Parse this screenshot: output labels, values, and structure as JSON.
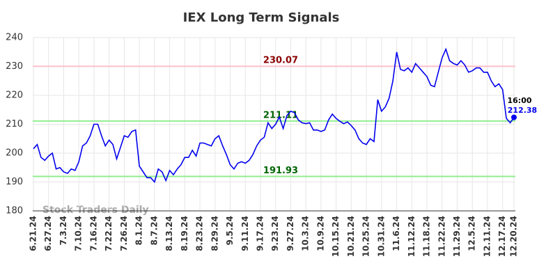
{
  "chart_data": {
    "type": "line",
    "title": "IEX Long Term Signals",
    "categories": [
      "6.21.24",
      null,
      null,
      null,
      "6.27.24",
      null,
      null,
      null,
      "7.3.24",
      null,
      null,
      null,
      "7.10.24",
      null,
      null,
      null,
      "7.16.24",
      null,
      null,
      null,
      "7.22.24",
      null,
      null,
      null,
      "7.26.24",
      null,
      null,
      null,
      "8.1.24",
      null,
      null,
      null,
      "8.7.24",
      null,
      null,
      null,
      "8.13.24",
      null,
      null,
      null,
      "8.19.24",
      null,
      null,
      null,
      "8.23.24",
      null,
      null,
      null,
      "8.29.24",
      null,
      null,
      null,
      "9.5.24",
      null,
      null,
      null,
      "9.11.24",
      null,
      null,
      null,
      "9.17.24",
      null,
      null,
      null,
      "9.23.24",
      null,
      null,
      null,
      "9.27.24",
      null,
      null,
      null,
      "10.3.24",
      null,
      null,
      null,
      "10.9.24",
      null,
      null,
      null,
      "10.15.24",
      null,
      null,
      null,
      "10.21.24",
      null,
      null,
      null,
      "10.25.24",
      null,
      null,
      null,
      "10.31.24",
      null,
      null,
      null,
      "11.6.24",
      null,
      null,
      null,
      "11.12.24",
      null,
      null,
      null,
      "11.18.24",
      null,
      null,
      null,
      "11.22.24",
      null,
      null,
      null,
      "11.29.24",
      null,
      null,
      null,
      "12.5.24",
      null,
      null,
      null,
      "12.11.24",
      null,
      null,
      null,
      "12.17.24",
      null,
      null,
      "12.20.24"
    ],
    "series": [
      {
        "color": "#0000ee",
        "values": [
          201.5,
          203,
          198.5,
          197.5,
          199,
          200,
          194.5,
          195,
          193.5,
          193,
          194.5,
          194,
          197,
          202.5,
          203.5,
          206,
          210,
          210,
          206,
          202.5,
          204.5,
          203,
          198,
          202,
          206,
          205.5,
          207.5,
          208,
          195.5,
          193.5,
          191.5,
          191.5,
          190,
          194.5,
          193.5,
          190.5,
          194,
          192.5,
          194.5,
          196,
          198.5,
          198.5,
          201,
          199,
          203.5,
          203.5,
          203,
          202.5,
          205,
          206,
          202.5,
          199.5,
          196,
          194.5,
          196.5,
          197,
          196.5,
          197.5,
          199.5,
          202.5,
          204.5,
          205.5,
          210.5,
          208.5,
          210,
          212.5,
          208.5,
          213,
          214.5,
          214,
          211.5,
          210.5,
          210.2,
          210.5,
          208,
          208,
          207.5,
          208,
          211.5,
          213.5,
          212,
          211,
          210.2,
          210.8,
          209.5,
          208,
          205,
          203.5,
          203,
          205,
          204,
          218.5,
          214.5,
          216,
          219,
          225,
          235,
          229,
          228.5,
          229.5,
          228,
          231,
          229.5,
          228,
          226.5,
          223.5,
          223,
          228,
          233,
          236,
          232,
          231,
          230.5,
          232,
          230.5,
          228,
          228.5,
          229.5,
          229.5,
          228,
          228,
          225,
          223,
          224,
          222,
          212,
          210.5,
          212.38
        ]
      }
    ],
    "last_time_label": "16:00",
    "hlines": [
      {
        "value": 230.07,
        "color": "#ffc0cb",
        "label_color": "#8b0000"
      },
      {
        "value": 211.11,
        "color": "#90ee90",
        "label_color": "#006400"
      },
      {
        "value": 191.93,
        "color": "#90ee90",
        "label_color": "#006400"
      }
    ],
    "watermark": "Stock Traders Daily",
    "ylim": [
      180,
      240
    ],
    "yticks": [
      180,
      190,
      200,
      210,
      220,
      230,
      240
    ],
    "grid": true
  }
}
